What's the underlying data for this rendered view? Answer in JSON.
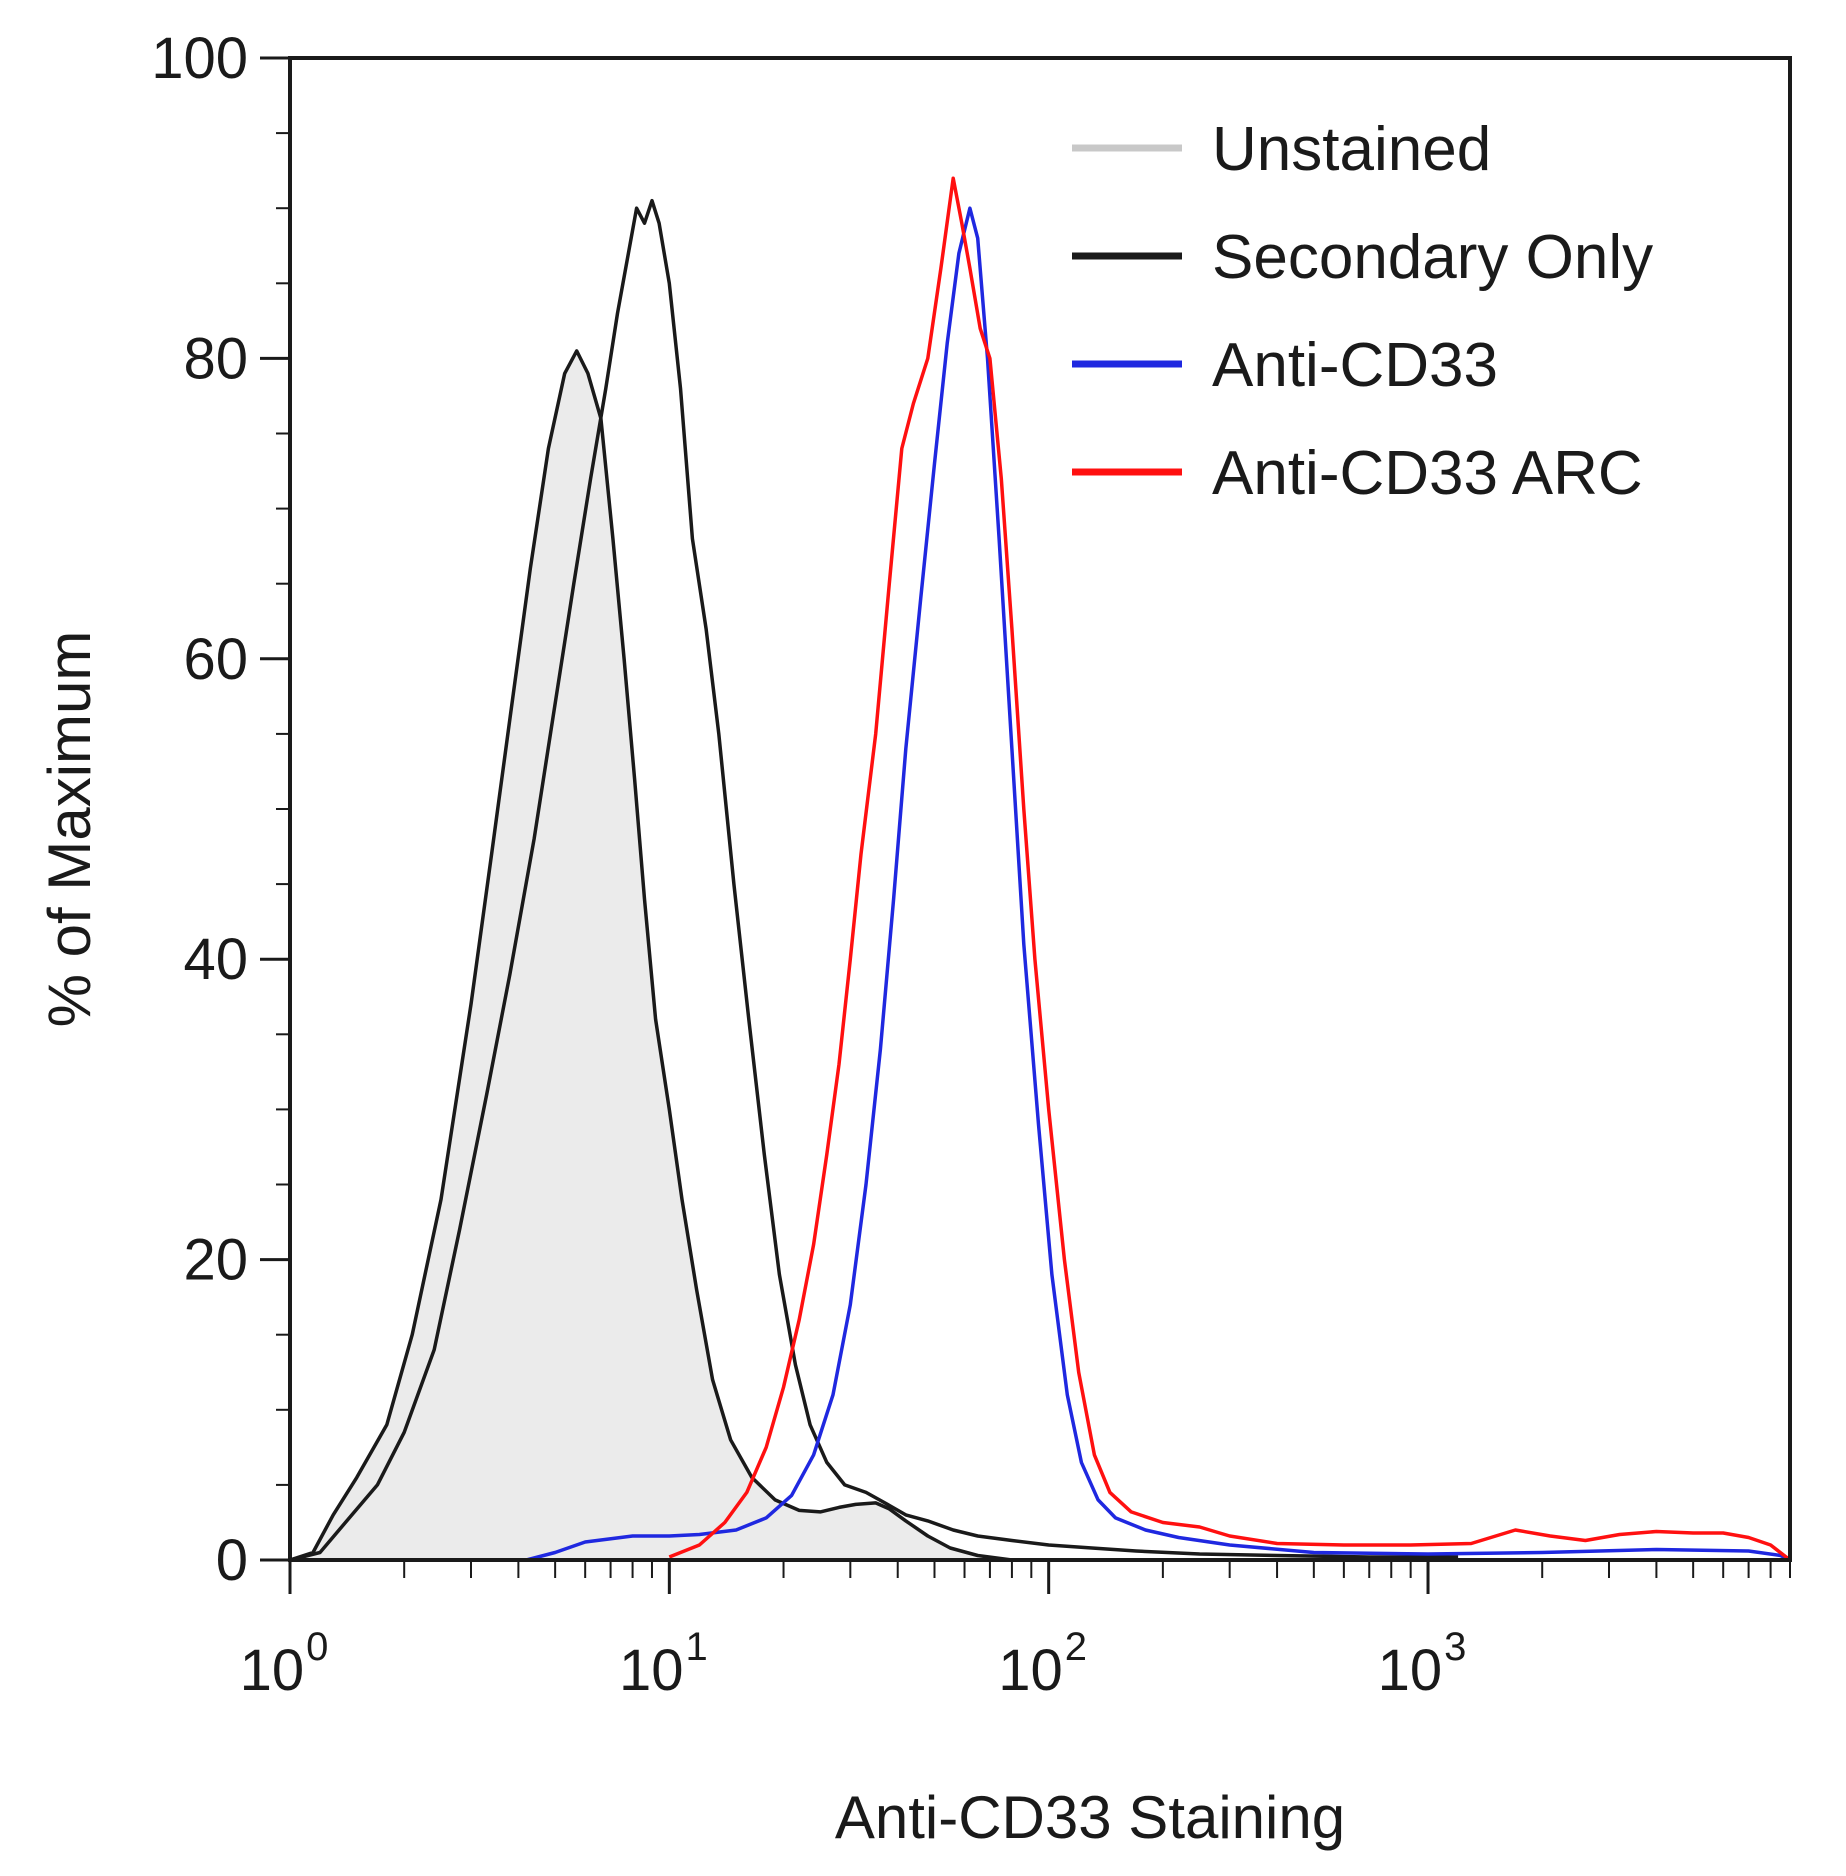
{
  "chart_data": {
    "type": "line",
    "title": "",
    "xlabel": "Anti-CD33 Staining",
    "ylabel": "% of Maximum",
    "x_scale": "log",
    "xlim": [
      1,
      9000
    ],
    "ylim": [
      0,
      100
    ],
    "x_ticks": [
      {
        "base": "10",
        "exp": "0",
        "value": 1
      },
      {
        "base": "10",
        "exp": "1",
        "value": 10
      },
      {
        "base": "10",
        "exp": "2",
        "value": 100
      },
      {
        "base": "10",
        "exp": "3",
        "value": 1000
      }
    ],
    "y_ticks": [
      "0",
      "20",
      "40",
      "60",
      "80",
      "100"
    ],
    "y_tick_values": [
      0,
      20,
      40,
      60,
      80,
      100
    ],
    "grid": false,
    "legend_position": "top-right",
    "series": [
      {
        "name": "Unstained",
        "color": "#c8c8c8",
        "fill": "#ebebeb",
        "outline": "#1a1a1a",
        "points": [
          [
            1.0,
            0
          ],
          [
            1.15,
            0.5
          ],
          [
            1.3,
            3
          ],
          [
            1.5,
            5.5
          ],
          [
            1.8,
            9
          ],
          [
            2.1,
            15
          ],
          [
            2.5,
            24
          ],
          [
            3.0,
            37
          ],
          [
            3.4,
            47
          ],
          [
            3.8,
            56
          ],
          [
            4.3,
            66
          ],
          [
            4.8,
            74
          ],
          [
            5.3,
            79
          ],
          [
            5.7,
            80.5
          ],
          [
            6.1,
            79
          ],
          [
            6.6,
            76
          ],
          [
            7.1,
            68
          ],
          [
            7.6,
            60
          ],
          [
            8.1,
            52
          ],
          [
            8.6,
            44
          ],
          [
            9.2,
            36
          ],
          [
            10.0,
            30
          ],
          [
            10.8,
            24
          ],
          [
            11.8,
            18
          ],
          [
            13.0,
            12
          ],
          [
            14.5,
            8
          ],
          [
            16.5,
            5.5
          ],
          [
            19.0,
            4
          ],
          [
            22.0,
            3.3
          ],
          [
            25.0,
            3.2
          ],
          [
            28.0,
            3.5
          ],
          [
            31.0,
            3.7
          ],
          [
            35.0,
            3.8
          ],
          [
            38.0,
            3.4
          ],
          [
            42.0,
            2.6
          ],
          [
            48.0,
            1.6
          ],
          [
            55.0,
            0.8
          ],
          [
            65.0,
            0.3
          ],
          [
            80.0,
            0
          ]
        ]
      },
      {
        "name": "Secondary Only",
        "color": "#1a1a1a",
        "points": [
          [
            1.0,
            0
          ],
          [
            1.2,
            0.5
          ],
          [
            1.4,
            2.5
          ],
          [
            1.7,
            5
          ],
          [
            2.0,
            8.5
          ],
          [
            2.4,
            14
          ],
          [
            2.8,
            22
          ],
          [
            3.3,
            31
          ],
          [
            3.8,
            39
          ],
          [
            4.4,
            48
          ],
          [
            5.0,
            57
          ],
          [
            5.6,
            65
          ],
          [
            6.2,
            72
          ],
          [
            6.8,
            78
          ],
          [
            7.3,
            83
          ],
          [
            7.8,
            87
          ],
          [
            8.2,
            90
          ],
          [
            8.6,
            89
          ],
          [
            9.0,
            90.5
          ],
          [
            9.4,
            89
          ],
          [
            10.0,
            85
          ],
          [
            10.7,
            78
          ],
          [
            11.5,
            68
          ],
          [
            12.5,
            62
          ],
          [
            13.5,
            55
          ],
          [
            14.8,
            45
          ],
          [
            16.2,
            36
          ],
          [
            17.8,
            27
          ],
          [
            19.5,
            19
          ],
          [
            21.5,
            13
          ],
          [
            23.5,
            9
          ],
          [
            26.0,
            6.5
          ],
          [
            29.0,
            5
          ],
          [
            33.0,
            4.5
          ],
          [
            37.0,
            3.8
          ],
          [
            42.0,
            3
          ],
          [
            48.0,
            2.6
          ],
          [
            56.0,
            2
          ],
          [
            65.0,
            1.6
          ],
          [
            80.0,
            1.3
          ],
          [
            100.0,
            1
          ],
          [
            130.0,
            0.8
          ],
          [
            170.0,
            0.6
          ],
          [
            250.0,
            0.4
          ],
          [
            400.0,
            0.3
          ],
          [
            700.0,
            0.2
          ],
          [
            1200.0,
            0.2
          ]
        ]
      },
      {
        "name": "Anti-CD33",
        "color": "#1f28e0",
        "points": [
          [
            4.2,
            0
          ],
          [
            5.0,
            0.5
          ],
          [
            6.0,
            1.2
          ],
          [
            8.0,
            1.6
          ],
          [
            10.0,
            1.6
          ],
          [
            12.0,
            1.7
          ],
          [
            15.0,
            2
          ],
          [
            18.0,
            2.8
          ],
          [
            21.0,
            4.3
          ],
          [
            24.0,
            7
          ],
          [
            27.0,
            11
          ],
          [
            30.0,
            17
          ],
          [
            33.0,
            25
          ],
          [
            36.0,
            34
          ],
          [
            39.0,
            44
          ],
          [
            42.0,
            54
          ],
          [
            46.0,
            64
          ],
          [
            50.0,
            73
          ],
          [
            54.0,
            81
          ],
          [
            58.0,
            87
          ],
          [
            62.0,
            90
          ],
          [
            65.0,
            88
          ],
          [
            69.0,
            80
          ],
          [
            74.0,
            68
          ],
          [
            80.0,
            54
          ],
          [
            86.0,
            41
          ],
          [
            94.0,
            29
          ],
          [
            102.0,
            19
          ],
          [
            112.0,
            11
          ],
          [
            122.0,
            6.5
          ],
          [
            135.0,
            4
          ],
          [
            150.0,
            2.8
          ],
          [
            180.0,
            2
          ],
          [
            220.0,
            1.5
          ],
          [
            300.0,
            1
          ],
          [
            500.0,
            0.5
          ],
          [
            1000.0,
            0.4
          ],
          [
            2000.0,
            0.5
          ],
          [
            4000.0,
            0.7
          ],
          [
            7000.0,
            0.6
          ],
          [
            8500.0,
            0.3
          ],
          [
            9000.0,
            0
          ]
        ]
      },
      {
        "name": "Anti-CD33 ARC",
        "color": "#ff1010",
        "points": [
          [
            10.0,
            0.2
          ],
          [
            12.0,
            1
          ],
          [
            14.0,
            2.5
          ],
          [
            16.0,
            4.5
          ],
          [
            18.0,
            7.5
          ],
          [
            20.0,
            11.5
          ],
          [
            22.0,
            16
          ],
          [
            24.0,
            21
          ],
          [
            26.0,
            27
          ],
          [
            28.0,
            33
          ],
          [
            30.0,
            40
          ],
          [
            32.0,
            47
          ],
          [
            35.0,
            55
          ],
          [
            38.0,
            65
          ],
          [
            41.0,
            74
          ],
          [
            44.0,
            77
          ],
          [
            48.0,
            80
          ],
          [
            52.0,
            86
          ],
          [
            56.0,
            92
          ],
          [
            59.0,
            89
          ],
          [
            62.0,
            86
          ],
          [
            66.0,
            82
          ],
          [
            70.0,
            80
          ],
          [
            75.0,
            72
          ],
          [
            80.0,
            62
          ],
          [
            86.0,
            50
          ],
          [
            92.0,
            40
          ],
          [
            100.0,
            30
          ],
          [
            110.0,
            20
          ],
          [
            120.0,
            12.5
          ],
          [
            132.0,
            7
          ],
          [
            145.0,
            4.5
          ],
          [
            165.0,
            3.2
          ],
          [
            200.0,
            2.5
          ],
          [
            250.0,
            2.2
          ],
          [
            300.0,
            1.6
          ],
          [
            400.0,
            1.1
          ],
          [
            600.0,
            1
          ],
          [
            900.0,
            1
          ],
          [
            1300.0,
            1.1
          ],
          [
            1700.0,
            2
          ],
          [
            2100.0,
            1.6
          ],
          [
            2600.0,
            1.3
          ],
          [
            3200.0,
            1.7
          ],
          [
            4000.0,
            1.9
          ],
          [
            5000.0,
            1.8
          ],
          [
            6000.0,
            1.8
          ],
          [
            7000.0,
            1.5
          ],
          [
            8000.0,
            1
          ],
          [
            9000.0,
            0
          ]
        ]
      }
    ]
  }
}
